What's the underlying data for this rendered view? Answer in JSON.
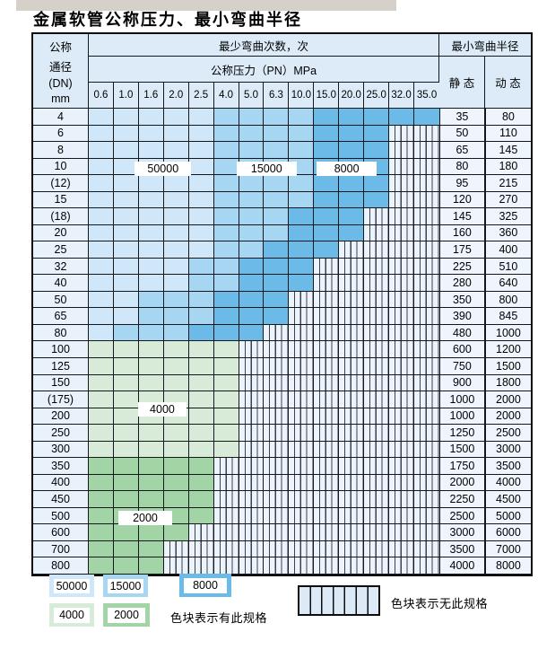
{
  "page": {
    "title": "金属软管公称压力、最小弯曲半径"
  },
  "table": {
    "header": {
      "dn_lines": [
        "公称",
        "通径",
        "(DN)",
        "mm"
      ],
      "bend_cycles_label": "最少弯曲次数，次",
      "pressure_label": "公称压力（PN）MPa",
      "bend_radius_label": "最小弯曲半径",
      "static_label": "静 态",
      "dynamic_label": "动 态",
      "pressure_cols": [
        "0.6",
        "1.0",
        "1.6",
        "2.0",
        "2.5",
        "4.0",
        "5.0",
        "6.3",
        "10.0",
        "15.0",
        "20.0",
        "25.0",
        "32.0",
        "35.0"
      ]
    },
    "band_legend_meaning": {
      "b1": "50000",
      "b2": "15000",
      "b3": "8000",
      "g1": "4000",
      "g2": "2000",
      "x": "无此规格"
    },
    "rows": [
      {
        "dn": "4",
        "bands": {
          "b1": 5,
          "b2": 4,
          "b3": 5,
          "x": 0
        },
        "static": "35",
        "dynamic": "80"
      },
      {
        "dn": "6",
        "bands": {
          "b1": 5,
          "b2": 4,
          "b3": 3,
          "x": 2
        },
        "static": "50",
        "dynamic": "110"
      },
      {
        "dn": "8",
        "bands": {
          "b1": 5,
          "b2": 4,
          "b3": 3,
          "x": 2
        },
        "static": "65",
        "dynamic": "145"
      },
      {
        "dn": "10",
        "bands": {
          "b1": 5,
          "b2": 4,
          "b3": 3,
          "x": 2
        },
        "static": "80",
        "dynamic": "180"
      },
      {
        "dn": "(12)",
        "bands": {
          "b1": 5,
          "b2": 4,
          "b3": 3,
          "x": 2
        },
        "static": "95",
        "dynamic": "215"
      },
      {
        "dn": "15",
        "bands": {
          "b1": 5,
          "b2": 4,
          "b3": 3,
          "x": 2
        },
        "static": "120",
        "dynamic": "270"
      },
      {
        "dn": "(18)",
        "bands": {
          "b1": 5,
          "b2": 3,
          "b3": 3,
          "x": 3
        },
        "static": "145",
        "dynamic": "325"
      },
      {
        "dn": "20",
        "bands": {
          "b1": 5,
          "b2": 3,
          "b3": 3,
          "x": 3
        },
        "static": "160",
        "dynamic": "360"
      },
      {
        "dn": "25",
        "bands": {
          "b1": 5,
          "b2": 2,
          "b3": 3,
          "x": 4
        },
        "static": "175",
        "dynamic": "400"
      },
      {
        "dn": "32",
        "bands": {
          "b1": 4,
          "b2": 2,
          "b3": 3,
          "x": 5
        },
        "static": "225",
        "dynamic": "510"
      },
      {
        "dn": "40",
        "bands": {
          "b1": 4,
          "b2": 2,
          "b3": 3,
          "x": 5
        },
        "static": "280",
        "dynamic": "640"
      },
      {
        "dn": "50",
        "bands": {
          "b1": 2,
          "b2": 3,
          "b3": 3,
          "x": 6
        },
        "static": "350",
        "dynamic": "800"
      },
      {
        "dn": "65",
        "bands": {
          "b1": 2,
          "b2": 3,
          "b3": 3,
          "x": 6
        },
        "static": "390",
        "dynamic": "845"
      },
      {
        "dn": "80",
        "bands": {
          "b1": 1,
          "b2": 3,
          "b3": 3,
          "x": 7
        },
        "static": "480",
        "dynamic": "1000"
      },
      {
        "dn": "100",
        "bands": {
          "g1": 6,
          "x": 8
        },
        "static": "600",
        "dynamic": "1200"
      },
      {
        "dn": "125",
        "bands": {
          "g1": 6,
          "x": 8
        },
        "static": "750",
        "dynamic": "1500"
      },
      {
        "dn": "150",
        "bands": {
          "g1": 6,
          "x": 8
        },
        "static": "900",
        "dynamic": "1800"
      },
      {
        "dn": "(175)",
        "bands": {
          "g1": 6,
          "x": 8
        },
        "static": "1000",
        "dynamic": "2000"
      },
      {
        "dn": "200",
        "bands": {
          "g1": 6,
          "x": 8
        },
        "static": "1000",
        "dynamic": "2000"
      },
      {
        "dn": "250",
        "bands": {
          "g1": 6,
          "x": 8
        },
        "static": "1250",
        "dynamic": "2500"
      },
      {
        "dn": "300",
        "bands": {
          "g1": 6,
          "x": 8
        },
        "static": "1500",
        "dynamic": "3000"
      },
      {
        "dn": "350",
        "bands": {
          "g2": 5,
          "x": 9
        },
        "static": "1750",
        "dynamic": "3500"
      },
      {
        "dn": "400",
        "bands": {
          "g2": 5,
          "x": 9
        },
        "static": "2000",
        "dynamic": "4000"
      },
      {
        "dn": "450",
        "bands": {
          "g2": 5,
          "x": 9
        },
        "static": "2250",
        "dynamic": "4500"
      },
      {
        "dn": "500",
        "bands": {
          "g2": 5,
          "x": 9
        },
        "static": "2500",
        "dynamic": "5000"
      },
      {
        "dn": "600",
        "bands": {
          "g2": 4,
          "x": 10
        },
        "static": "3000",
        "dynamic": "6000"
      },
      {
        "dn": "700",
        "bands": {
          "g2": 3,
          "x": 11
        },
        "static": "3500",
        "dynamic": "7000"
      },
      {
        "dn": "800",
        "bands": {
          "g2": 3,
          "x": 11
        },
        "static": "4000",
        "dynamic": "8000"
      }
    ],
    "overlay_labels": [
      {
        "text": "50000",
        "row": 3.15,
        "c0": 1.83,
        "c1": 4.1
      },
      {
        "text": "15000",
        "row": 3.15,
        "c0": 5.9,
        "c1": 8.3
      },
      {
        "text": "8000",
        "row": 3.15,
        "c0": 9.1,
        "c1": 11.5
      },
      {
        "text": "4000",
        "row": 17.6,
        "c0": 1.97,
        "c1": 3.9
      },
      {
        "text": "2000",
        "row": 24.1,
        "c0": 1.18,
        "c1": 3.33
      }
    ]
  },
  "legend": {
    "swatches": [
      {
        "label": "50000",
        "color_key": "b1"
      },
      {
        "label": "15000",
        "color_key": "b2"
      },
      {
        "label": "8000",
        "color_key": "b3"
      },
      {
        "label": "4000",
        "color_key": "g1"
      },
      {
        "label": "2000",
        "color_key": "g2"
      }
    ],
    "has_spec_text": "色块表示有此规格",
    "no_spec_text": "色块表示无此规格"
  },
  "colors": {
    "b1": "#cfe7f8",
    "b2": "#a6d6f1",
    "b3": "#6cbae7",
    "g1": "#d7ebd8",
    "g2": "#a2d4a6",
    "striped_bg": "#edf3fb",
    "header_bg": "#dcebf7",
    "label_col_bg": "#e9f2fb",
    "value_col_bg": "#eff5fc",
    "grid_line": "#14181d"
  }
}
